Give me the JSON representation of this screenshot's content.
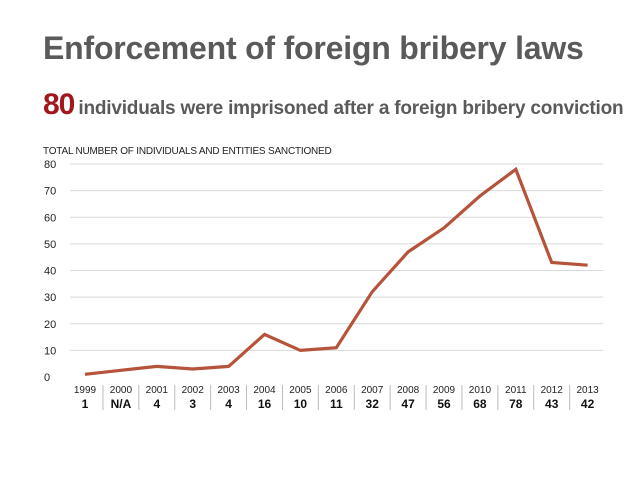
{
  "title": "Enforcement of foreign bribery laws",
  "headline": {
    "number": "80",
    "text": "individuals were imprisoned after a foreign bribery conviction"
  },
  "chart_data": {
    "type": "line",
    "title": "TOTAL NUMBER OF INDIVIDUALS AND ENTITIES SANCTIONED",
    "categories": [
      "1999",
      "2000",
      "2001",
      "2002",
      "2003",
      "2004",
      "2005",
      "2006",
      "2007",
      "2008",
      "2009",
      "2010",
      "2011",
      "2012",
      "2013"
    ],
    "value_labels": [
      "1",
      "N/A",
      "4",
      "3",
      "4",
      "16",
      "10",
      "11",
      "32",
      "47",
      "56",
      "68",
      "78",
      "43",
      "42"
    ],
    "series": [
      {
        "values": [
          1,
          2.5,
          4,
          3,
          4,
          16,
          10,
          11,
          32,
          47,
          56,
          68,
          78,
          43,
          42
        ]
      }
    ],
    "ylim": [
      0,
      80
    ],
    "yticks": [
      0,
      10,
      20,
      30,
      40,
      50,
      60,
      70,
      80
    ],
    "grid": true,
    "line_color": "#b5533b",
    "grid_color": "#d9d9d9"
  },
  "colors": {
    "accent": "#a1171d",
    "title_text": "#5a5a5a"
  }
}
